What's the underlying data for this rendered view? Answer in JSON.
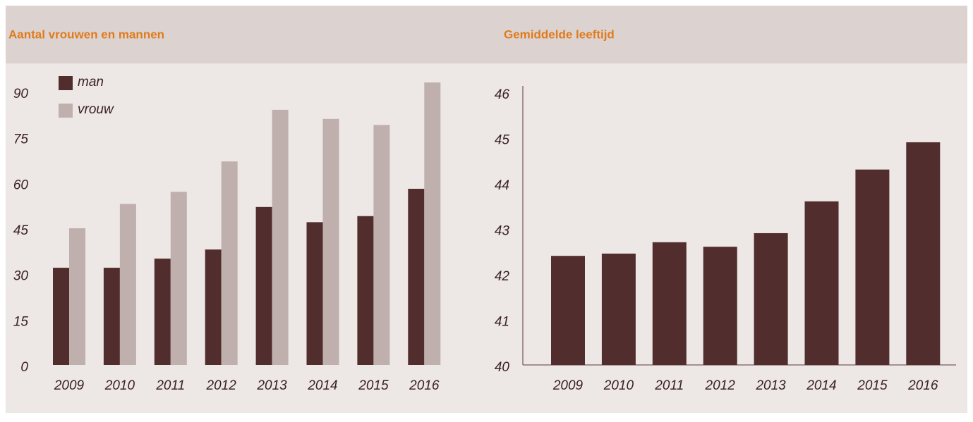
{
  "chart_data": [
    {
      "type": "bar",
      "title": "Aantal vrouwen en mannen",
      "categories": [
        "2009",
        "2010",
        "2011",
        "2012",
        "2013",
        "2014",
        "2015",
        "2016"
      ],
      "series": [
        {
          "name": "man",
          "color": "#512d2d",
          "values": [
            32,
            32,
            35,
            38,
            52,
            47,
            49,
            58
          ]
        },
        {
          "name": "vrouw",
          "color": "#c0b0ad",
          "values": [
            45,
            53,
            57,
            67,
            84,
            81,
            79,
            93
          ]
        }
      ],
      "ylim": [
        0,
        90
      ],
      "yticks": [
        0,
        15,
        30,
        45,
        60,
        75,
        90
      ],
      "legend": "top-left"
    },
    {
      "type": "bar",
      "title": "Gemiddelde leeftijd",
      "categories": [
        "2009",
        "2010",
        "2011",
        "2012",
        "2013",
        "2014",
        "2015",
        "2016"
      ],
      "series": [
        {
          "color": "#512d2d",
          "values": [
            42.4,
            42.45,
            42.7,
            42.6,
            42.9,
            43.6,
            44.3,
            44.9
          ]
        }
      ],
      "ylim": [
        40,
        46
      ],
      "yticks": [
        40,
        41,
        42,
        43,
        44,
        45,
        46
      ],
      "axes": true
    }
  ]
}
